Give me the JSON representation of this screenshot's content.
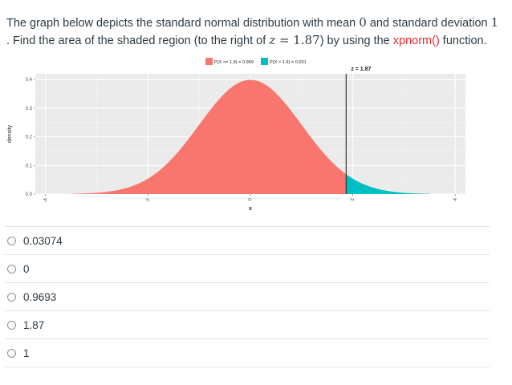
{
  "question": {
    "part1": "The graph below depicts the standard normal distribution with mean ",
    "mean": "0",
    "part2": " and standard deviation ",
    "sd": "1",
    "part3": ". Find the area of the shaded region (to the right of ",
    "z_var": "z",
    "z_eq": " = 1.87",
    "part4": ") by using the ",
    "fn_name": "xpnorm()",
    "part5": " function."
  },
  "chart_data": {
    "type": "area",
    "title": "",
    "legend": {
      "placement": "top-center",
      "entries": [
        {
          "label": "P(X <= 1.9) = 0.969",
          "color": "#f8766d"
        },
        {
          "label": "P(X > 1.9) = 0.031",
          "color": "#00bfc4"
        }
      ]
    },
    "annotation": "z = 1.87",
    "cutoff": 1.87,
    "xlabel": "x",
    "ylabel": "density",
    "xlim": [
      -4.2,
      4.2
    ],
    "ylim": [
      0,
      0.42
    ],
    "x_ticks": [
      "-4",
      "-2",
      "0",
      "2",
      "4"
    ],
    "y_ticks": [
      "0.0",
      "0.1",
      "0.2",
      "0.3",
      "0.4"
    ],
    "x_tick_values": [
      -4,
      -2,
      0,
      2,
      4
    ],
    "y_tick_values": [
      0,
      0.1,
      0.2,
      0.3,
      0.4
    ],
    "series": [
      {
        "name": "P(X <= 1.9) = 0.969",
        "x_range": [
          -3.5,
          1.87
        ],
        "color": "#f8766d"
      },
      {
        "name": "P(X > 1.9) = 0.031",
        "x_range": [
          1.87,
          3.5
        ],
        "color": "#00bfc4"
      }
    ],
    "grid": true,
    "panel_color": "#ebebeb"
  },
  "choices": [
    "0.03074",
    "0",
    "0.9693",
    "1.87",
    "1"
  ]
}
